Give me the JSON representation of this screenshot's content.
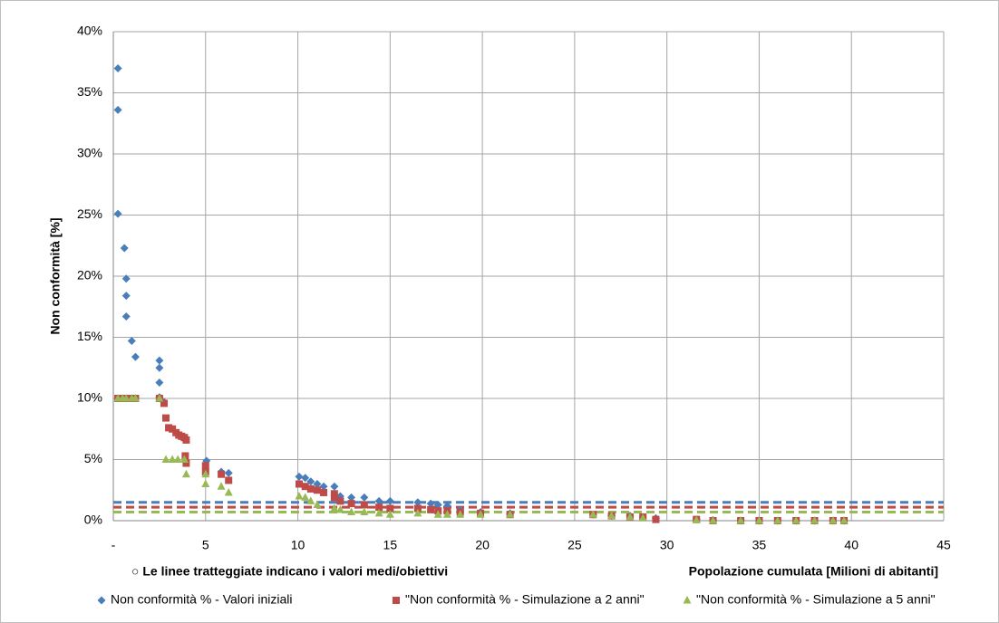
{
  "chart_data": {
    "type": "scatter",
    "x_label": "Popolazione cumulata [Milioni di abitanti]",
    "y_label": "Non conformità [%]",
    "annotation": "○ Le linee tratteggiate indicano i valori medi/obiettivi",
    "xlim": [
      0,
      45
    ],
    "ylim": [
      0,
      40
    ],
    "xticks": [
      {
        "value": 0,
        "label": "-"
      },
      5,
      10,
      15,
      20,
      25,
      30,
      35,
      40,
      45
    ],
    "yticks": [
      {
        "value": 0,
        "label": "0%"
      },
      {
        "value": 5,
        "label": "5%"
      },
      {
        "value": 10,
        "label": "10%"
      },
      {
        "value": 15,
        "label": "15%"
      },
      {
        "value": 20,
        "label": "20%"
      },
      {
        "value": 25,
        "label": "25%"
      },
      {
        "value": 30,
        "label": "30%"
      },
      {
        "value": 35,
        "label": "35%"
      },
      {
        "value": 40,
        "label": "40%"
      }
    ],
    "grid": true,
    "legend": "bottom",
    "series": [
      {
        "name": "Non conformità % - Valori iniziali",
        "color": "#4a7ebb",
        "marker": "diamond",
        "target": 1.5,
        "x": [
          0.25,
          0.25,
          0.25,
          0.6,
          0.7,
          0.7,
          0.7,
          1.0,
          1.2,
          2.5,
          2.5,
          2.5,
          2.5,
          2.75,
          5.05,
          5.85,
          6.25,
          10.07,
          10.4,
          10.7,
          11.05,
          11.4,
          11.98,
          12.3,
          12.9,
          13.6,
          14.4,
          15.0,
          16.5,
          17.2,
          17.6,
          18.1,
          18.8,
          19.9,
          21.5,
          26,
          27,
          28,
          28.7,
          29.4,
          31.6,
          32.5,
          34,
          35,
          36,
          37,
          38,
          39,
          39.6
        ],
        "values": [
          37.0,
          33.6,
          25.1,
          22.3,
          19.8,
          18.4,
          16.7,
          14.7,
          13.4,
          13.1,
          12.5,
          11.3,
          10.1,
          9.7,
          4.9,
          4.0,
          3.9,
          3.6,
          3.5,
          3.2,
          3.0,
          2.8,
          2.8,
          2.0,
          1.9,
          1.9,
          1.6,
          1.6,
          1.5,
          1.4,
          1.3,
          1.2,
          0.9,
          0.7,
          0.6,
          0.5,
          0.4,
          0.4,
          0.3,
          0.2,
          0.1,
          0.05,
          0,
          0,
          0,
          0,
          0,
          0,
          0
        ]
      },
      {
        "name": "\"Non conformità % - Simulazione a 2 anni\"",
        "color": "#be4b48",
        "marker": "square",
        "target": 1.1,
        "x": [
          0.25,
          0.5,
          0.7,
          1.0,
          1.2,
          2.5,
          2.75,
          2.85,
          3.0,
          3.2,
          3.4,
          3.55,
          3.7,
          3.85,
          3.95,
          3.9,
          3.95,
          5.0,
          5.0,
          5.85,
          6.25,
          10.07,
          10.4,
          10.7,
          11.05,
          11.4,
          11.98,
          11.98,
          12.3,
          12.9,
          13.6,
          14.4,
          15.0,
          16.5,
          17.2,
          17.6,
          18.1,
          18.8,
          19.9,
          21.5,
          26,
          27,
          28,
          28.7,
          29.4,
          31.6,
          32.5,
          34,
          35,
          36,
          37,
          38,
          39,
          39.6
        ],
        "values": [
          10,
          10,
          10,
          10,
          10,
          10,
          9.6,
          8.4,
          7.6,
          7.5,
          7.2,
          7.0,
          6.9,
          6.8,
          6.6,
          5.3,
          4.7,
          4.5,
          4.0,
          3.8,
          3.3,
          3.0,
          2.8,
          2.6,
          2.5,
          2.3,
          2.2,
          1.9,
          1.6,
          1.4,
          1.3,
          1.1,
          1.0,
          1.0,
          0.9,
          0.8,
          0.8,
          0.7,
          0.6,
          0.5,
          0.5,
          0.4,
          0.3,
          0.3,
          0.1,
          0.1,
          0,
          0,
          0,
          0,
          0,
          0,
          0,
          0
        ]
      },
      {
        "name": "\"Non conformità % - Simulazione a 5 anni\"",
        "color": "#98b954",
        "marker": "triangle",
        "target": 0.7,
        "x": [
          0.25,
          0.5,
          0.7,
          1.0,
          1.2,
          2.5,
          2.85,
          3.2,
          3.5,
          3.85,
          3.95,
          5.0,
          5.0,
          5.85,
          6.25,
          10.07,
          10.4,
          10.7,
          11.05,
          11.98,
          12.3,
          12.9,
          13.6,
          14.4,
          15.0,
          16.5,
          17.6,
          18.1,
          18.8,
          19.9,
          21.5,
          26,
          27,
          28,
          28.7,
          31.6,
          32.5,
          34,
          35,
          36,
          37,
          38,
          39,
          39.6
        ],
        "values": [
          10,
          10,
          10,
          10,
          10,
          10,
          5.0,
          5.0,
          5.0,
          5.0,
          3.8,
          3.8,
          3.0,
          2.8,
          2.3,
          2.0,
          1.9,
          1.6,
          1.3,
          1.0,
          0.9,
          0.7,
          0.7,
          0.6,
          0.5,
          0.6,
          0.5,
          0.5,
          0.5,
          0.5,
          0.5,
          0.5,
          0.4,
          0.3,
          0.2,
          0.05,
          0,
          0,
          0,
          0,
          0,
          0,
          0,
          0
        ]
      }
    ]
  }
}
